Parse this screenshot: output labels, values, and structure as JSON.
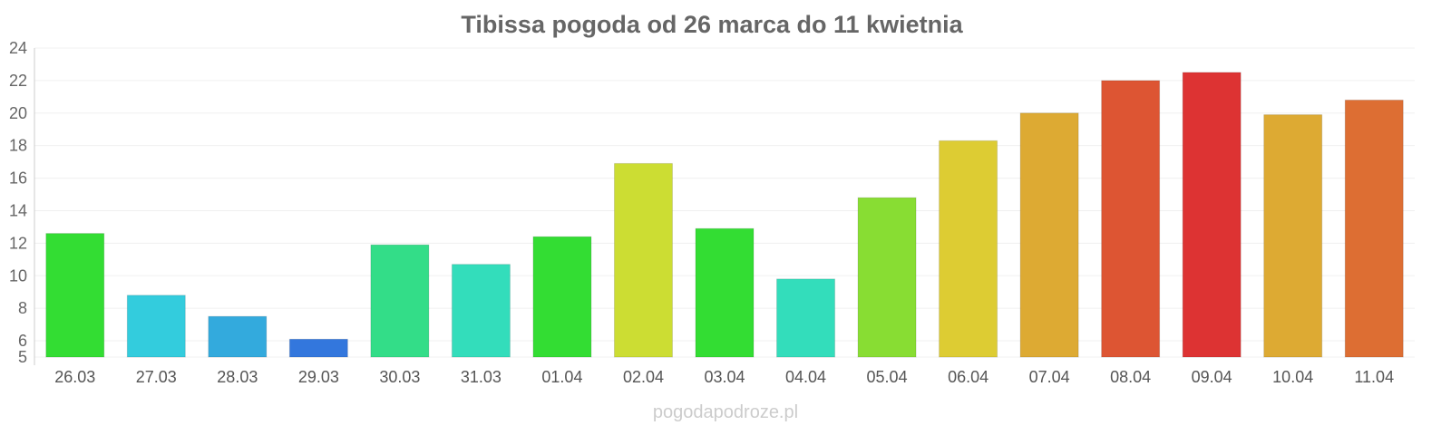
{
  "chart_data": {
    "type": "bar",
    "title": "Tibissa pogoda od 26 marca do 11 kwietnia",
    "xlabel": "",
    "ylabel": "",
    "ylim": [
      5,
      24
    ],
    "yticks": [
      5,
      6,
      8,
      10,
      12,
      14,
      16,
      18,
      20,
      22,
      24
    ],
    "grid": true,
    "categories": [
      "26.03",
      "27.03",
      "28.03",
      "29.03",
      "30.03",
      "31.03",
      "01.04",
      "02.04",
      "03.04",
      "04.04",
      "05.04",
      "06.04",
      "07.04",
      "08.04",
      "09.04",
      "10.04",
      "11.04"
    ],
    "values": [
      12.6,
      8.8,
      7.5,
      6.1,
      11.9,
      10.7,
      12.4,
      16.9,
      12.9,
      9.8,
      14.8,
      18.3,
      20.0,
      22.0,
      22.5,
      19.9,
      20.8
    ],
    "colors": [
      "#33dd33",
      "#33ccdd",
      "#33aadd",
      "#3377dd",
      "#33dd88",
      "#33ddbb",
      "#33dd33",
      "#ccdd33",
      "#33dd33",
      "#33ddbb",
      "#88dd33",
      "#ddcc33",
      "#ddaa33",
      "#dd5533",
      "#dd3333",
      "#ddaa33",
      "#dd6e33"
    ]
  },
  "watermark": "pogodapodroze.pl"
}
